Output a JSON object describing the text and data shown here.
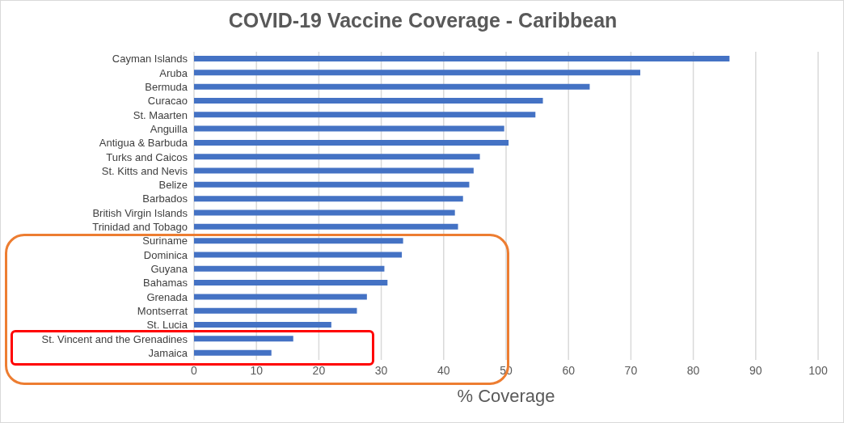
{
  "chart_data": {
    "type": "bar",
    "orientation": "horizontal",
    "title": "COVID-19 Vaccine Coverage - Caribbean",
    "xlabel": "% Coverage",
    "categories": [
      "Cayman Islands",
      "Aruba",
      "Bermuda",
      "Curacao",
      "St. Maarten",
      "Anguilla",
      "Antigua & Barbuda",
      "Turks and Caicos",
      "St. Kitts and Nevis",
      "Belize",
      "Barbados",
      "British Virgin Islands",
      "Trinidad and Tobago",
      "Suriname",
      "Dominica",
      "Guyana",
      "Bahamas",
      "Grenada",
      "Montserrat",
      "St. Lucia",
      "St. Vincent and the Grenadines",
      "Jamaica"
    ],
    "values": [
      85.8,
      71.5,
      63.4,
      55.9,
      54.7,
      49.7,
      50.4,
      45.8,
      44.8,
      44.1,
      43.1,
      41.8,
      42.3,
      33.5,
      33.3,
      30.5,
      31.0,
      27.7,
      26.1,
      22.0,
      15.9,
      12.4
    ],
    "color": "#4472c4",
    "xlim": [
      0,
      100
    ],
    "xticks": [
      0,
      10,
      20,
      30,
      40,
      50,
      60,
      70,
      80,
      90,
      100
    ],
    "grid": "x",
    "legend": false
  }
}
